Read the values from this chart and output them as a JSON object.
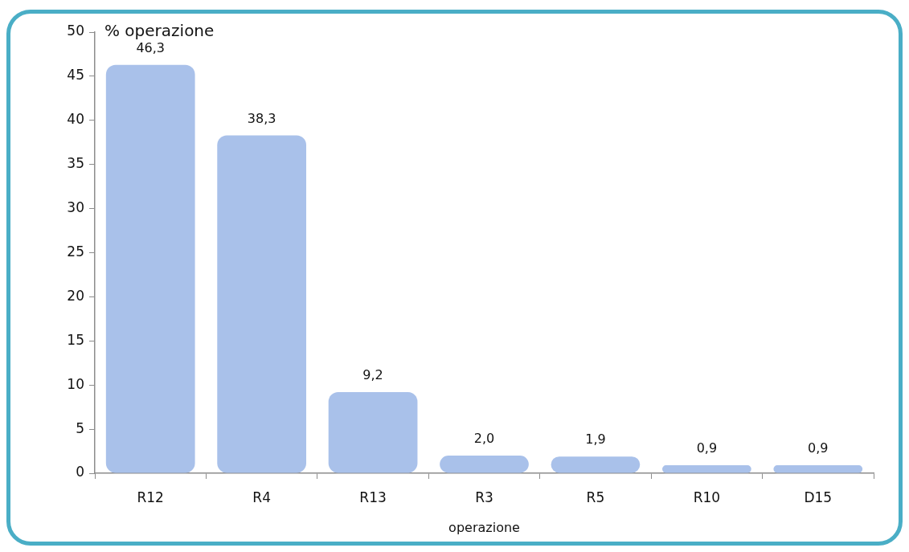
{
  "chart_data": {
    "type": "bar",
    "categories": [
      "R12",
      "R4",
      "R13",
      "R3",
      "R5",
      "R10",
      "D15"
    ],
    "values": [
      46.3,
      38.3,
      9.2,
      2.0,
      1.9,
      0.9,
      0.9
    ],
    "value_labels": [
      "46,3",
      "38,3",
      "9,2",
      "2,0",
      "1,9",
      "0,9",
      "0,9"
    ],
    "color": "#a9c1ea",
    "xlabel": "operazione",
    "ylabel": "% operazione",
    "ylim": [
      0,
      50
    ],
    "yticks": [
      0,
      5,
      10,
      15,
      20,
      25,
      30,
      35,
      40,
      45,
      50
    ]
  }
}
